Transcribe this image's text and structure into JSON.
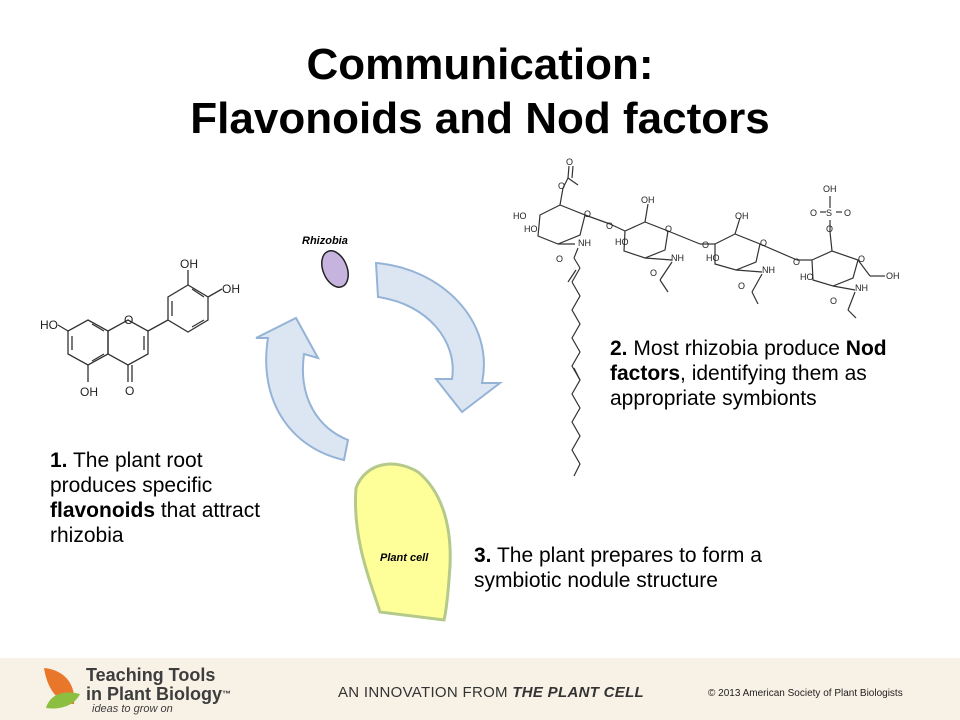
{
  "title": {
    "line1": "Communication:",
    "line2": "Flavonoids and Nod factors"
  },
  "labels": {
    "rhizobia": "Rhizobia",
    "plant_cell": "Plant cell"
  },
  "flavonoid_labels": {
    "oh_top": "OH",
    "oh_right": "OH",
    "ho_left": "HO",
    "oh_bottom": "OH",
    "ring_o": "O",
    "keto_o": "O"
  },
  "nod_labels": {
    "acetyl_o_top": "O",
    "acetyl_o_ester": "O",
    "ho1": "HO",
    "ho2": "HO",
    "ring_o1": "O",
    "nh1": "NH",
    "link_o1": "O",
    "oh2": "OH",
    "ring_o2": "O",
    "ho3": "HO",
    "nh2": "NH",
    "carbonyl_o2": "O",
    "link_o2": "O",
    "oh3": "OH",
    "ring_o3": "O",
    "ho4": "HO",
    "nh3": "NH",
    "carbonyl_o3": "O",
    "link_o3": "O",
    "sulfate_oh": "OH",
    "sulfate_s": "S",
    "sulfate_o_left": "O",
    "sulfate_o_right": "O",
    "sulfate_o_bottom": "O",
    "ring_o4": "O",
    "ho5": "HO",
    "oh_terminal": "OH",
    "nh4": "NH",
    "carbonyl_o4": "O",
    "amide_o": "O"
  },
  "steps": [
    {
      "num": "1.",
      "pre": " The plant root produces specific ",
      "bold": "flavonoids",
      "post": " that attract rhizobia"
    },
    {
      "num": "2.",
      "pre": " Most rhizobia produce ",
      "bold": "Nod factors",
      "post": ", identifying them as appropriate symbionts"
    },
    {
      "num": "3.",
      "pre": " The plant prepares to form a symbiotic nodule structure",
      "bold": "",
      "post": ""
    }
  ],
  "footer": {
    "logo_line1": "Teaching Tools",
    "logo_line2": "in Plant Biology",
    "trademark": "™",
    "tagline": "ideas to grow on",
    "innovation_prefix": "AN INNOVATION FROM ",
    "innovation_brand": "THE PLANT CELL",
    "copyright": "© 2013 American Society of Plant Biologists"
  },
  "colors": {
    "arrow_fill": "#dce6f2",
    "arrow_stroke": "#95b3d7",
    "bacterium_fill": "#c6b3de",
    "plant_cell_fill": "#ffff99",
    "plant_cell_stroke": "#b5c98a",
    "footer_bg": "#f8f1e6",
    "logo_orange": "#e8762b",
    "logo_green": "#8cbf3f"
  }
}
